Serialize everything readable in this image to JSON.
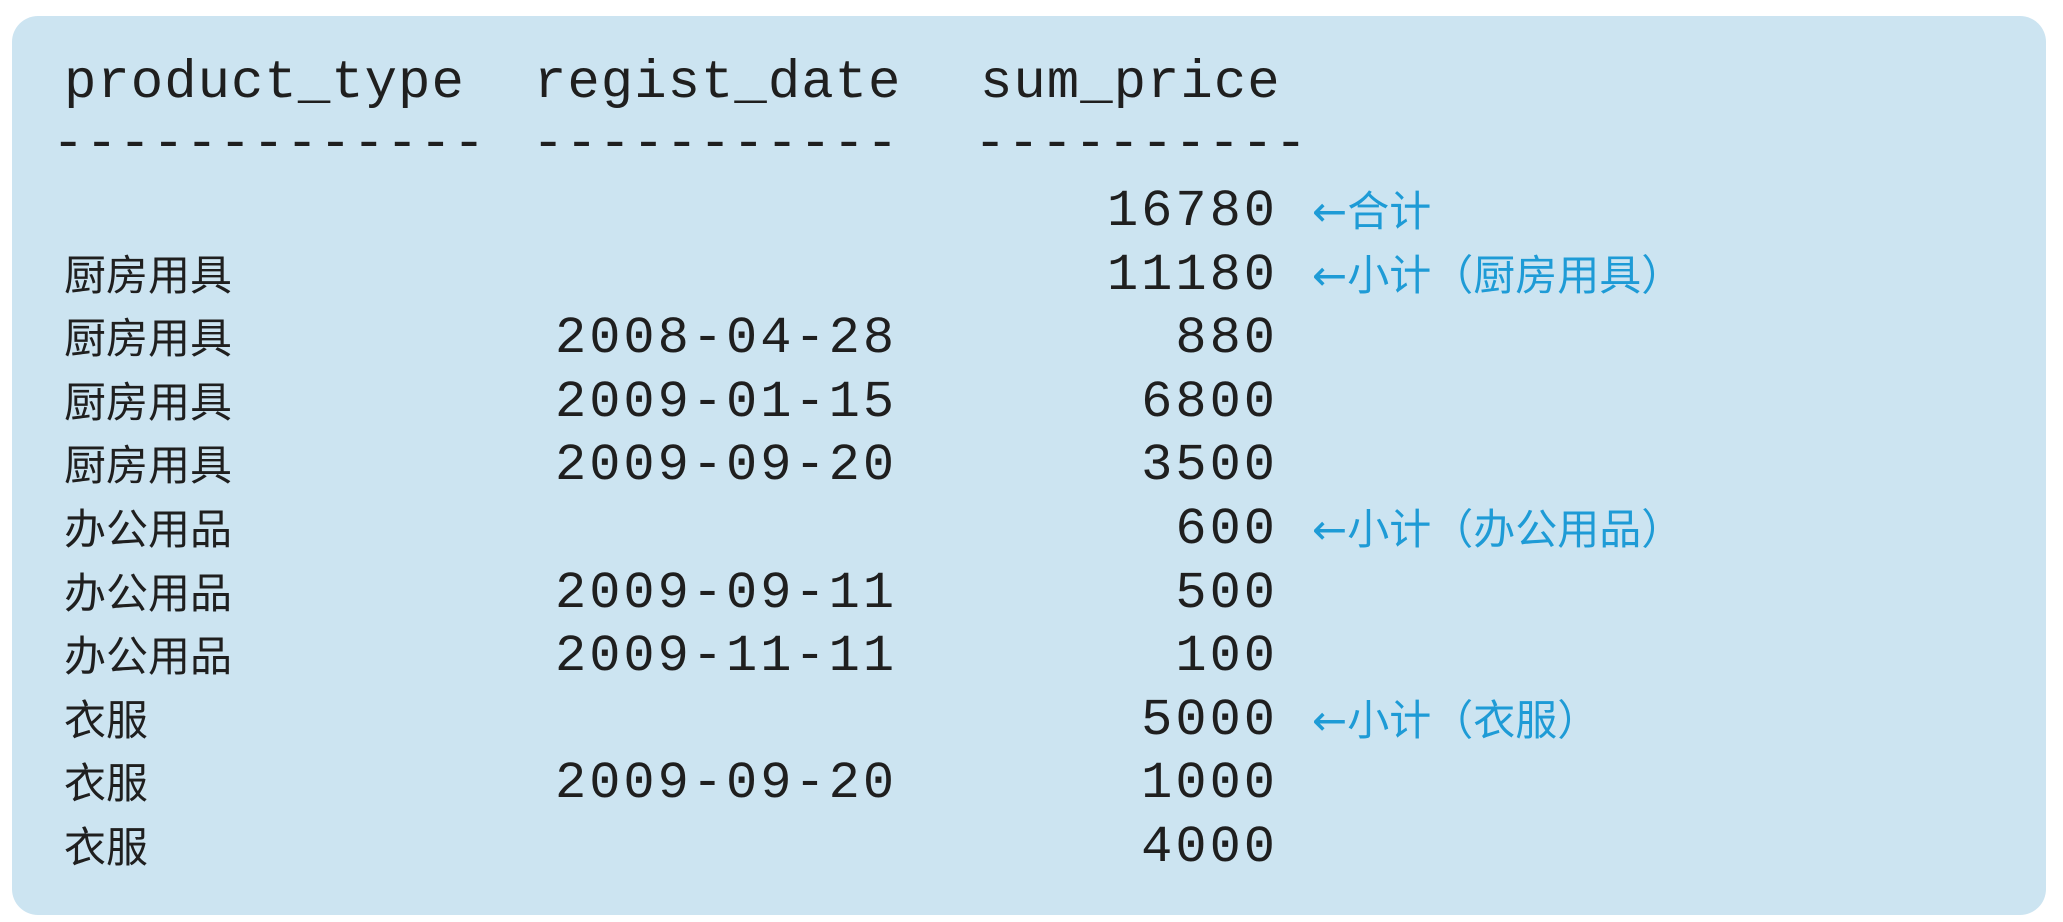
{
  "headers": {
    "product_type": "product_type",
    "regist_date": "regist_date",
    "sum_price": "sum_price"
  },
  "separators": {
    "product_type": "-------------",
    "regist_date": "-----------",
    "sum_price": "----------"
  },
  "rows": [
    {
      "product_type": "",
      "regist_date": "",
      "sum_price": "16780",
      "note": "←合计"
    },
    {
      "product_type": "厨房用具",
      "regist_date": "",
      "sum_price": "11180",
      "note": "←小计（厨房用具）"
    },
    {
      "product_type": "厨房用具",
      "regist_date": "2008-04-28",
      "sum_price": "880",
      "note": ""
    },
    {
      "product_type": "厨房用具",
      "regist_date": "2009-01-15",
      "sum_price": "6800",
      "note": ""
    },
    {
      "product_type": "厨房用具",
      "regist_date": "2009-09-20",
      "sum_price": "3500",
      "note": ""
    },
    {
      "product_type": "办公用品",
      "regist_date": "",
      "sum_price": "600",
      "note": "←小计（办公用品）"
    },
    {
      "product_type": "办公用品",
      "regist_date": "2009-09-11",
      "sum_price": "500",
      "note": ""
    },
    {
      "product_type": "办公用品",
      "regist_date": "2009-11-11",
      "sum_price": "100",
      "note": ""
    },
    {
      "product_type": "衣服",
      "regist_date": "",
      "sum_price": "5000",
      "note": "←小计（衣服）"
    },
    {
      "product_type": "衣服",
      "regist_date": "2009-09-20",
      "sum_price": "1000",
      "note": ""
    },
    {
      "product_type": "衣服",
      "regist_date": "",
      "sum_price": "4000",
      "note": ""
    }
  ]
}
